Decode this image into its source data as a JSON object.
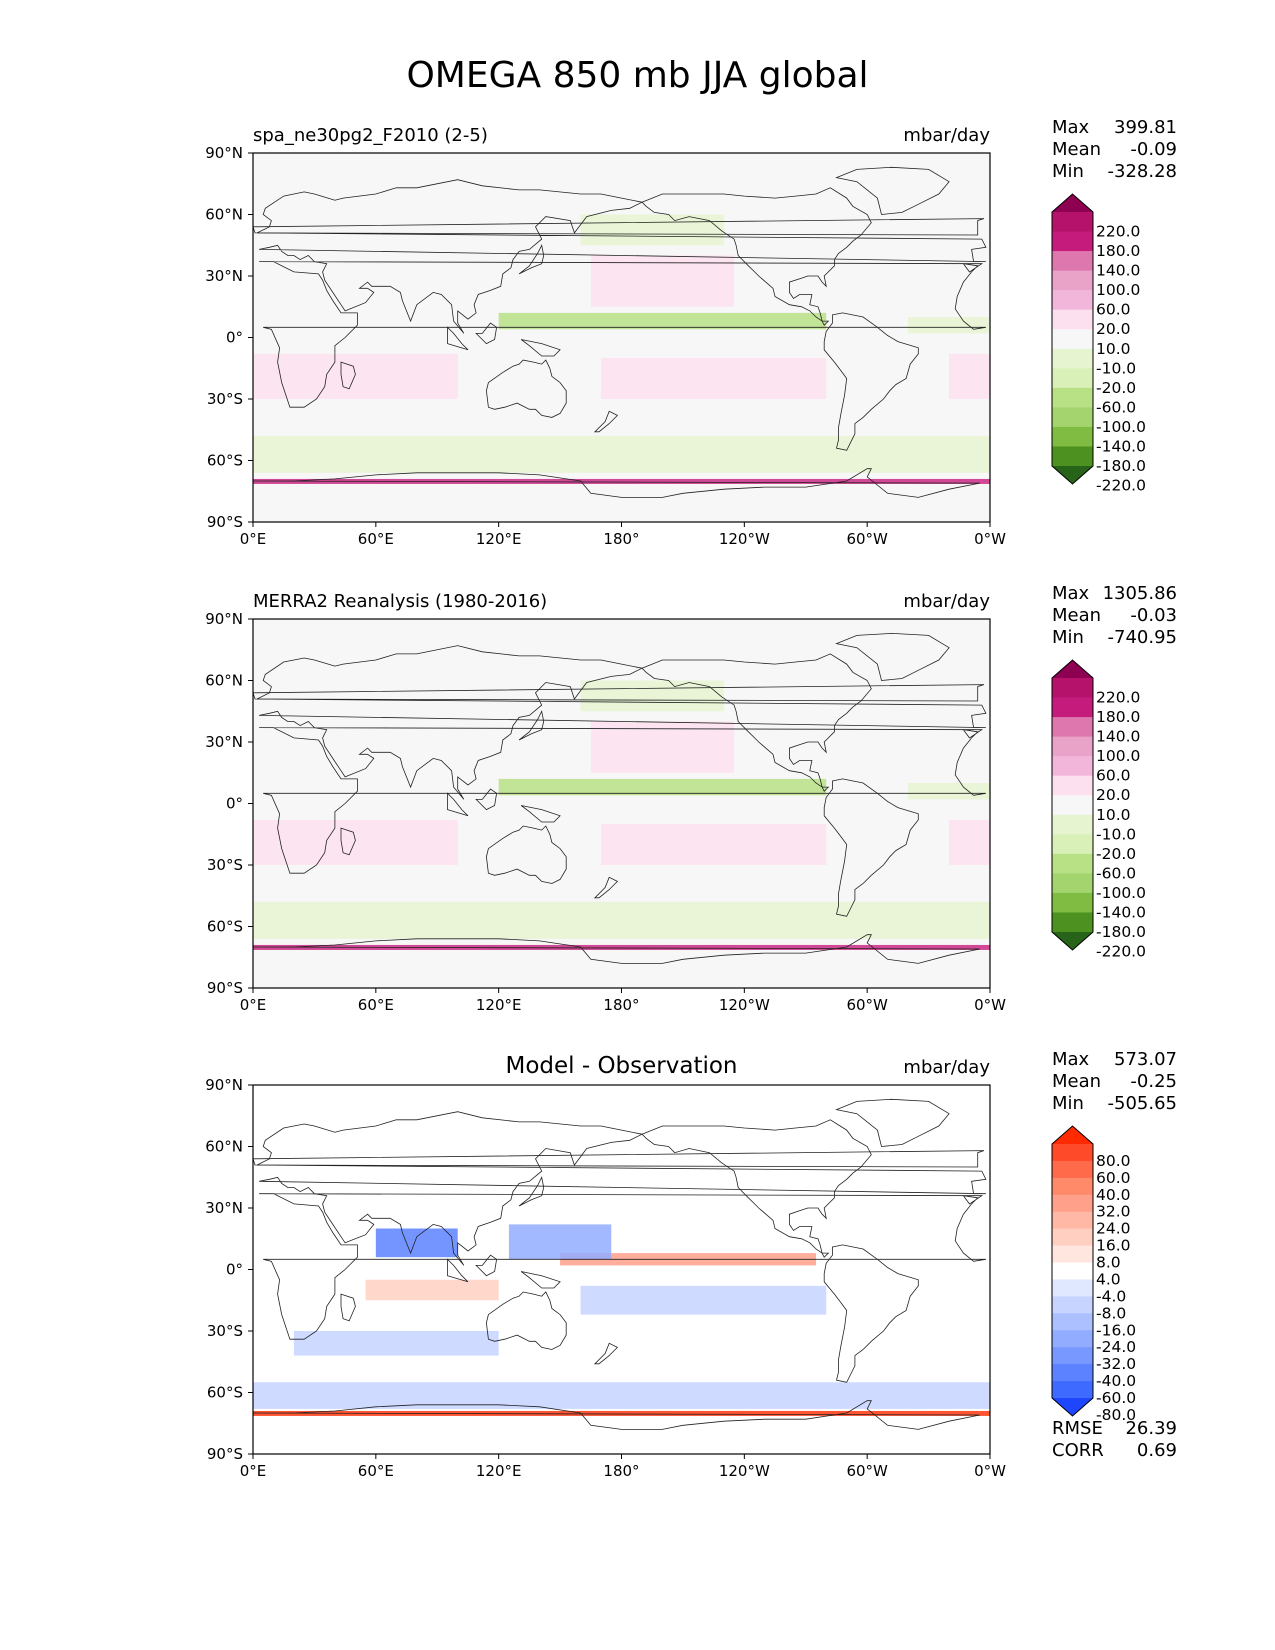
{
  "title": "OMEGA 850 mb JJA global",
  "chart_data": [
    {
      "type": "heatmap",
      "panel": "test",
      "title_left": "spa_ne30pg2_F2010 (2-5)",
      "title_right": "mbar/day",
      "title_center": "",
      "x_ticks": [
        "0°E",
        "60°E",
        "120°E",
        "180°",
        "120°W",
        "60°W",
        "0°W"
      ],
      "y_ticks": [
        "90°N",
        "60°N",
        "30°N",
        "0°",
        "30°S",
        "60°S",
        "90°S"
      ],
      "xlim": [
        0,
        360
      ],
      "ylim": [
        -90,
        90
      ],
      "stats": [
        {
          "label": "Max",
          "value": "399.81"
        },
        {
          "label": "Mean",
          "value": "-0.09"
        },
        {
          "label": "Min",
          "value": "-328.28"
        }
      ],
      "colorbar": {
        "labels": [
          "220.0",
          "180.0",
          "140.0",
          "100.0",
          "60.0",
          "20.0",
          "10.0",
          "-10.0",
          "-20.0",
          "-60.0",
          "-100.0",
          "-140.0",
          "-180.0",
          "-220.0"
        ],
        "colors": [
          "#8e0152",
          "#b5126c",
          "#c51b7d",
          "#de77ae",
          "#e9a3c9",
          "#f1b6da",
          "#fde0ef",
          "#f7f7f7",
          "#e6f5d0",
          "#d9f0b8",
          "#b8e186",
          "#a3d46e",
          "#7fbc41",
          "#4d9221",
          "#276419"
        ]
      }
    },
    {
      "type": "heatmap",
      "panel": "reference",
      "title_left": "MERRA2 Reanalysis (1980-2016)",
      "title_right": "mbar/day",
      "title_center": "",
      "x_ticks": [
        "0°E",
        "60°E",
        "120°E",
        "180°",
        "120°W",
        "60°W",
        "0°W"
      ],
      "y_ticks": [
        "90°N",
        "60°N",
        "30°N",
        "0°",
        "30°S",
        "60°S",
        "90°S"
      ],
      "xlim": [
        0,
        360
      ],
      "ylim": [
        -90,
        90
      ],
      "stats": [
        {
          "label": "Max",
          "value": "1305.86"
        },
        {
          "label": "Mean",
          "value": "-0.03"
        },
        {
          "label": "Min",
          "value": "-740.95"
        }
      ],
      "colorbar": {
        "labels": [
          "220.0",
          "180.0",
          "140.0",
          "100.0",
          "60.0",
          "20.0",
          "10.0",
          "-10.0",
          "-20.0",
          "-60.0",
          "-100.0",
          "-140.0",
          "-180.0",
          "-220.0"
        ],
        "colors": [
          "#8e0152",
          "#b5126c",
          "#c51b7d",
          "#de77ae",
          "#e9a3c9",
          "#f1b6da",
          "#fde0ef",
          "#f7f7f7",
          "#e6f5d0",
          "#d9f0b8",
          "#b8e186",
          "#a3d46e",
          "#7fbc41",
          "#4d9221",
          "#276419"
        ]
      }
    },
    {
      "type": "heatmap",
      "panel": "difference",
      "title_left": "",
      "title_right": "mbar/day",
      "title_center": "Model - Observation",
      "x_ticks": [
        "0°E",
        "60°E",
        "120°E",
        "180°",
        "120°W",
        "60°W",
        "0°W"
      ],
      "y_ticks": [
        "90°N",
        "60°N",
        "30°N",
        "0°",
        "30°S",
        "60°S",
        "90°S"
      ],
      "xlim": [
        0,
        360
      ],
      "ylim": [
        -90,
        90
      ],
      "stats": [
        {
          "label": "Max",
          "value": "573.07"
        },
        {
          "label": "Mean",
          "value": "-0.25"
        },
        {
          "label": "Min",
          "value": "-505.65"
        }
      ],
      "extra_stats": [
        {
          "label": "RMSE",
          "value": "26.39"
        },
        {
          "label": "CORR",
          "value": "0.69"
        }
      ],
      "colorbar": {
        "labels": [
          "80.0",
          "60.0",
          "40.0",
          "32.0",
          "24.0",
          "16.0",
          "8.0",
          "4.0",
          "-4.0",
          "-8.0",
          "-16.0",
          "-24.0",
          "-32.0",
          "-40.0",
          "-60.0",
          "-80.0"
        ],
        "colors": [
          "#ff2a00",
          "#ff4a2a",
          "#ff6a4a",
          "#ff8a6a",
          "#ffa08a",
          "#ffb8a6",
          "#ffd0c2",
          "#ffe6de",
          "#ffffff",
          "#e0e8ff",
          "#c6d4ff",
          "#acc0ff",
          "#92acff",
          "#7898ff",
          "#5c82ff",
          "#3e6aff",
          "#1e46ff"
        ]
      }
    }
  ]
}
